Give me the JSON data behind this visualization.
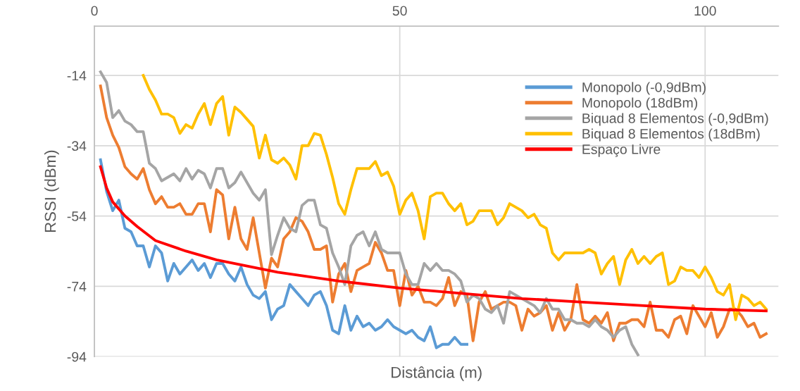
{
  "chart_data": {
    "type": "line",
    "xlabel": "Distância (m)",
    "ylabel": "RSSI (dBm)",
    "xlim": [
      0,
      112
    ],
    "xticks": [
      0,
      50,
      100
    ],
    "ylim": [
      -94,
      0
    ],
    "yticks": [
      -94,
      -74,
      -54,
      -34,
      -14
    ],
    "grid": true,
    "legend": "top right",
    "marker": "none",
    "line_style": "solid",
    "series": [
      {
        "name": "Monopolo (-0,9dBm)",
        "color": "#5b9bd5",
        "x": [
          1,
          2,
          3,
          4,
          5,
          6,
          7,
          8,
          9,
          10,
          11,
          12,
          13,
          14,
          15,
          16,
          17,
          18,
          19,
          20,
          21,
          22,
          23,
          24,
          25,
          26,
          27,
          28,
          29,
          30,
          31,
          32,
          33,
          34,
          35,
          36,
          37,
          38,
          39,
          40,
          41,
          42,
          43,
          44,
          45,
          46,
          47,
          48,
          49,
          50,
          51,
          52,
          53,
          54,
          55,
          56,
          57,
          58,
          59,
          60,
          61
        ],
        "values": [
          -38,
          -47,
          -52.5,
          -49.5,
          -57.5,
          -58.5,
          -62.5,
          -62.5,
          -68.5,
          -62.5,
          -64.5,
          -72.5,
          -67.5,
          -70.5,
          -68.5,
          -66.5,
          -69.5,
          -67.5,
          -71.5,
          -67.5,
          -67.5,
          -70.5,
          -72.5,
          -68.5,
          -73.5,
          -76.5,
          -77.5,
          -75.5,
          -83.5,
          -80.5,
          -79.5,
          -73.5,
          -75.5,
          -77.5,
          -79.5,
          -76.5,
          -75.5,
          -79.5,
          -86.5,
          -87.5,
          -79.5,
          -86.5,
          -82.5,
          -85.5,
          -84.5,
          -86.5,
          -85.5,
          -83.5,
          -85.5,
          -86.5,
          -87.5,
          -86.5,
          -88.5,
          -89.5,
          -85.5,
          -91.5,
          -90.5,
          -90.5,
          -88.5,
          -90.5,
          -90.5
        ]
      },
      {
        "name": "Monopolo (18dBm)",
        "color": "#ed7d31",
        "x": [
          1,
          2,
          3,
          4,
          5,
          6,
          7,
          8,
          9,
          10,
          11,
          12,
          13,
          14,
          15,
          16,
          17,
          18,
          19,
          20,
          21,
          22,
          23,
          24,
          25,
          26,
          27,
          28,
          29,
          30,
          31,
          32,
          33,
          34,
          35,
          36,
          37,
          38,
          39,
          40,
          41,
          42,
          43,
          44,
          45,
          46,
          47,
          48,
          49,
          50,
          51,
          52,
          53,
          54,
          55,
          56,
          57,
          58,
          59,
          60,
          61,
          62,
          63,
          64,
          65,
          66,
          67,
          68,
          69,
          70,
          71,
          72,
          73,
          74,
          75,
          76,
          77,
          78,
          79,
          80,
          81,
          82,
          83,
          84,
          85,
          86,
          87,
          88,
          89,
          90,
          91,
          92,
          93,
          94,
          95,
          96,
          97,
          98,
          99,
          100,
          101,
          102,
          103,
          104,
          105,
          106,
          107,
          108,
          109,
          110
        ],
        "values": [
          -17,
          -26,
          -31,
          -34.5,
          -40,
          -42,
          -43.5,
          -40.5,
          -46.5,
          -50.5,
          -48.5,
          -51.5,
          -51.5,
          -50.5,
          -53.5,
          -53.5,
          -50.5,
          -50.5,
          -58.5,
          -46.5,
          -48,
          -60.5,
          -51.5,
          -60.5,
          -63.5,
          -54.5,
          -64.5,
          -74.5,
          -66,
          -68.5,
          -60.5,
          -58.5,
          -54.5,
          -55.5,
          -58.5,
          -63.5,
          -63.5,
          -62.5,
          -78.5,
          -70.5,
          -67.5,
          -75.5,
          -69.5,
          -68.5,
          -67.5,
          -61.5,
          -64.5,
          -69.5,
          -69.5,
          -79.5,
          -69.5,
          -76.5,
          -74,
          -78.5,
          -78.5,
          -79.5,
          -77.5,
          -71.5,
          -79.5,
          -75.5,
          -76.5,
          -89.5,
          -78.5,
          -75.5,
          -80.5,
          -79.5,
          -78.5,
          -78.5,
          -79.5,
          -86.5,
          -80.5,
          -82.5,
          -81.5,
          -79.5,
          -86.5,
          -81.5,
          -86.5,
          -83.5,
          -73.5,
          -83.5,
          -84.5,
          -82.5,
          -84.5,
          -81.5,
          -89.5,
          -84.5,
          -84.5,
          -83.5,
          -83.5,
          -85.5,
          -78.5,
          -86.5,
          -86.5,
          -88.5,
          -83.5,
          -82.5,
          -87.5,
          -79.5,
          -82.5,
          -85.5,
          -81.5,
          -88.5,
          -85.5,
          -80.5,
          -80.5,
          -82.5,
          -85.5,
          -84.5,
          -88.5,
          -87.5
        ]
      },
      {
        "name": "Biquad 8 Elementos (-0,9dBm)",
        "color": "#a5a5a5",
        "x": [
          1,
          2,
          3,
          4,
          5,
          6,
          7,
          8,
          9,
          10,
          11,
          12,
          13,
          14,
          15,
          16,
          17,
          18,
          19,
          20,
          21,
          22,
          23,
          24,
          25,
          26,
          27,
          28,
          29,
          30,
          31,
          32,
          33,
          34,
          35,
          36,
          37,
          38,
          39,
          40,
          41,
          42,
          43,
          44,
          45,
          46,
          47,
          48,
          49,
          50,
          51,
          52,
          53,
          54,
          55,
          56,
          57,
          58,
          59,
          60,
          61,
          62,
          63,
          64,
          65,
          66,
          67,
          68,
          69,
          70,
          71,
          72,
          73,
          74,
          75,
          76,
          77,
          78,
          79,
          80,
          81,
          82,
          83,
          84,
          85,
          86,
          87,
          88,
          89
        ],
        "values": [
          -13,
          -16,
          -26,
          -24,
          -27,
          -28,
          -30,
          -30,
          -39,
          -40.5,
          -44,
          -43,
          -42,
          -44,
          -40.5,
          -43.5,
          -41,
          -42,
          -46,
          -40.5,
          -40.5,
          -46,
          -44.5,
          -41.5,
          -44.5,
          -47.5,
          -49.5,
          -46.5,
          -65,
          -59.5,
          -54.5,
          -57.5,
          -58.5,
          -51,
          -49.5,
          -49.5,
          -56.5,
          -57.5,
          -64.5,
          -68.5,
          -73.5,
          -62.5,
          -59.5,
          -58.5,
          -62.5,
          -58.5,
          -63.5,
          -64.5,
          -64.5,
          -64.5,
          -70.5,
          -73.5,
          -73.5,
          -67.5,
          -69.5,
          -67.5,
          -69.5,
          -69.5,
          -70.5,
          -72.5,
          -78.5,
          -76.5,
          -77.5,
          -80.5,
          -81.5,
          -79.5,
          -84.5,
          -75.5,
          -76.5,
          -77.5,
          -78.5,
          -79.5,
          -81.5,
          -77.5,
          -80.5,
          -80.5,
          -83.5,
          -83.5,
          -84.5,
          -84.5,
          -85.5,
          -83.5,
          -85.5,
          -86.5,
          -88.5,
          -86.5,
          -85.5,
          -90.5,
          -93.5
        ]
      },
      {
        "name": "Biquad 8 Elementos (18dBm)",
        "color": "#ffc000",
        "x": [
          8,
          9,
          10,
          11,
          12,
          13,
          14,
          15,
          16,
          17,
          18,
          19,
          20,
          21,
          22,
          23,
          24,
          25,
          26,
          27,
          28,
          29,
          30,
          31,
          32,
          33,
          34,
          35,
          36,
          37,
          38,
          39,
          40,
          41,
          42,
          43,
          44,
          45,
          46,
          47,
          48,
          49,
          50,
          51,
          52,
          53,
          54,
          55,
          56,
          57,
          58,
          59,
          60,
          61,
          62,
          63,
          64,
          65,
          66,
          67,
          68,
          69,
          70,
          71,
          72,
          73,
          74,
          75,
          76,
          77,
          78,
          79,
          80,
          81,
          82,
          83,
          84,
          85,
          86,
          87,
          88,
          89,
          90,
          91,
          92,
          93,
          94,
          95,
          96,
          97,
          98,
          99,
          100,
          101,
          102,
          103,
          104,
          105,
          106,
          107,
          108,
          109,
          110
        ],
        "values": [
          -14,
          -18,
          -21,
          -25,
          -25,
          -26,
          -30.5,
          -28,
          -29,
          -25,
          -22,
          -28,
          -22,
          -20,
          -31,
          -23,
          -24.5,
          -26.5,
          -28.5,
          -37.5,
          -31,
          -38,
          -39,
          -37.5,
          -39.5,
          -43.5,
          -34,
          -34,
          -30.5,
          -31,
          -36.5,
          -43,
          -50.5,
          -53.5,
          -46.5,
          -40.5,
          -40.5,
          -40.5,
          -38.5,
          -42.5,
          -41.5,
          -45.5,
          -53.5,
          -49.5,
          -47.5,
          -52.5,
          -60.5,
          -48.5,
          -47.5,
          -47.5,
          -50.5,
          -52.5,
          -50.5,
          -56.5,
          -55.5,
          -52.5,
          -52.5,
          -52.5,
          -56.5,
          -54.5,
          -50.5,
          -51.5,
          -52.5,
          -54.5,
          -53.5,
          -56.5,
          -57.5,
          -64.5,
          -66.5,
          -64.5,
          -64.5,
          -64.5,
          -64.5,
          -63.5,
          -64.5,
          -70.5,
          -67.5,
          -65.5,
          -73.5,
          -66.5,
          -63.5,
          -67.5,
          -65.5,
          -67.5,
          -65.5,
          -64.5,
          -73.5,
          -72.5,
          -68.5,
          -69.5,
          -69.5,
          -71.5,
          -68.5,
          -71.5,
          -75.5,
          -76.5,
          -73.5,
          -83.5,
          -76.5,
          -77.5,
          -79.5,
          -78.5,
          -80.5
        ]
      },
      {
        "name": "Espaço Livre",
        "color": "#ff0000",
        "x": [
          1,
          2,
          3,
          5,
          7,
          10,
          15,
          20,
          30,
          40,
          50,
          60,
          70,
          80,
          90,
          100,
          110
        ],
        "values": [
          -40,
          -46,
          -50,
          -54,
          -57,
          -61,
          -64,
          -66.5,
          -70,
          -72.5,
          -74.5,
          -76,
          -77.5,
          -78.5,
          -79.5,
          -80.5,
          -81
        ]
      }
    ]
  }
}
